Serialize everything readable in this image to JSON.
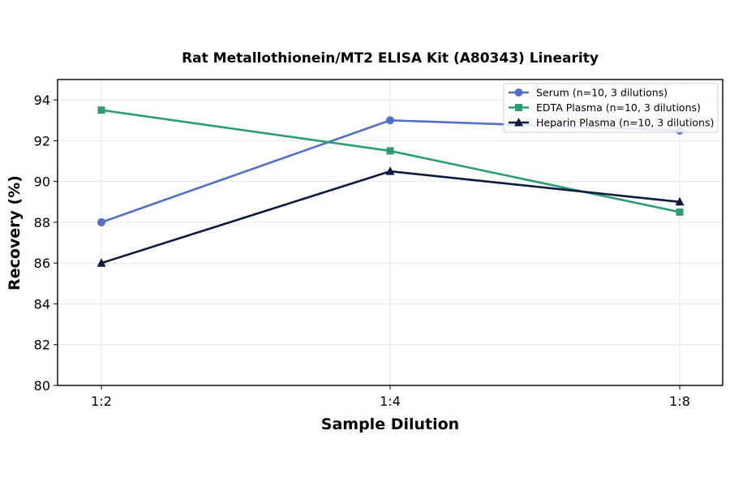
{
  "chart_data": {
    "type": "line",
    "title": "Rat Metallothionein/MT2 ELISA Kit (A80343) Linearity",
    "xlabel": "Sample Dilution",
    "ylabel": "Recovery (%)",
    "categories": [
      "1:2",
      "1:4",
      "1:8"
    ],
    "ylim": [
      80,
      95
    ],
    "yticks": [
      80,
      82,
      84,
      86,
      88,
      90,
      92,
      94
    ],
    "grid": true,
    "legend_position": "top-right",
    "series": [
      {
        "name": "Serum (n=10, 3 dilutions)",
        "values": [
          88.0,
          93.0,
          92.5
        ],
        "color": "#5470c6",
        "marker": "circle"
      },
      {
        "name": "EDTA Plasma (n=10, 3 dilutions)",
        "values": [
          93.5,
          91.5,
          88.5
        ],
        "color": "#2a9d76",
        "marker": "square"
      },
      {
        "name": "Heparin Plasma (n=10, 3 dilutions)",
        "values": [
          86.0,
          90.5,
          89.0
        ],
        "color": "#0c1a3e",
        "marker": "triangle"
      }
    ]
  }
}
